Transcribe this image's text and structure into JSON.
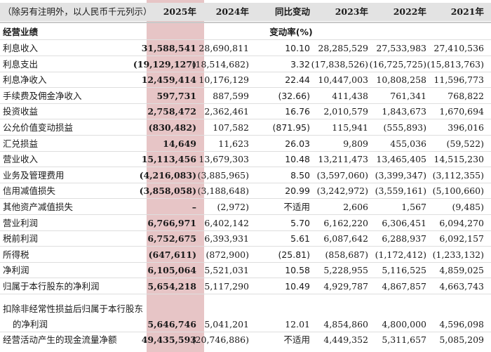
{
  "header": {
    "note": "（除另有注明外，以人民币千元列示）",
    "col_2025": "2025年",
    "col_2024": "2024年",
    "col_yoy": "同比变动",
    "col_2023": "2023年",
    "col_2022": "2022年",
    "col_2021": "2021年"
  },
  "section": {
    "title": "经营业绩",
    "change_label": "变动率(%)"
  },
  "rows": [
    {
      "label": "利息收入",
      "y2025": "31,588,541",
      "y2024": "28,690,811",
      "yoy": "10.10",
      "y2023": "28,285,529",
      "y2022": "27,533,983",
      "y2021": "27,410,536"
    },
    {
      "label": "利息支出",
      "y2025": "(19,129,127)",
      "y2024": "(18,514,682)",
      "yoy": "3.32",
      "y2023": "(17,838,526)",
      "y2022": "(16,725,725)",
      "y2021": "(15,813,763)"
    },
    {
      "label": "利息净收入",
      "y2025": "12,459,414",
      "y2024": "10,176,129",
      "yoy": "22.44",
      "y2023": "10,447,003",
      "y2022": "10,808,258",
      "y2021": "11,596,773"
    },
    {
      "label": "手续费及佣金净收入",
      "y2025": "597,731",
      "y2024": "887,599",
      "yoy": "(32.66)",
      "y2023": "411,438",
      "y2022": "761,341",
      "y2021": "768,822"
    },
    {
      "label": "投资收益",
      "y2025": "2,758,472",
      "y2024": "2,362,461",
      "yoy": "16.76",
      "y2023": "2,010,579",
      "y2022": "1,843,673",
      "y2021": "1,670,694"
    },
    {
      "label": "公允价值变动损益",
      "y2025": "(830,482)",
      "y2024": "107,582",
      "yoy": "(871.95)",
      "y2023": "115,941",
      "y2022": "(555,893)",
      "y2021": "396,016"
    },
    {
      "label": "汇兑损益",
      "y2025": "14,649",
      "y2024": "11,623",
      "yoy": "26.03",
      "y2023": "9,809",
      "y2022": "455,036",
      "y2021": "(59,522)"
    },
    {
      "label": "营业收入",
      "y2025": "15,113,456",
      "y2024": "13,679,303",
      "yoy": "10.48",
      "y2023": "13,211,473",
      "y2022": "13,465,405",
      "y2021": "14,515,230"
    },
    {
      "label": "业务及管理费用",
      "y2025": "(4,216,083)",
      "y2024": "(3,885,965)",
      "yoy": "8.50",
      "y2023": "(3,597,060)",
      "y2022": "(3,399,347)",
      "y2021": "(3,112,355)"
    },
    {
      "label": "信用减值损失",
      "y2025": "(3,858,058)",
      "y2024": "(3,188,648)",
      "yoy": "20.99",
      "y2023": "(3,242,972)",
      "y2022": "(3,559,161)",
      "y2021": "(5,100,660)"
    },
    {
      "label": "其他资产减值损失",
      "y2025": "–",
      "y2024": "(2,972)",
      "yoy": "不适用",
      "y2023": "2,606",
      "y2022": "1,567",
      "y2021": "(9,485)"
    },
    {
      "label": "营业利润",
      "y2025": "6,766,971",
      "y2024": "6,402,142",
      "yoy": "5.70",
      "y2023": "6,162,220",
      "y2022": "6,306,451",
      "y2021": "6,094,270"
    },
    {
      "label": "税前利润",
      "y2025": "6,752,675",
      "y2024": "6,393,931",
      "yoy": "5.61",
      "y2023": "6,087,642",
      "y2022": "6,288,937",
      "y2021": "6,092,157"
    },
    {
      "label": "所得税",
      "y2025": "(647,611)",
      "y2024": "(872,900)",
      "yoy": "(25.81)",
      "y2023": "(858,687)",
      "y2022": "(1,172,412)",
      "y2021": "(1,233,132)"
    },
    {
      "label": "净利润",
      "y2025": "6,105,064",
      "y2024": "5,521,031",
      "yoy": "10.58",
      "y2023": "5,228,955",
      "y2022": "5,116,525",
      "y2021": "4,859,025"
    },
    {
      "label": "归属于本行股东的净利润",
      "y2025": "5,654,218",
      "y2024": "5,117,290",
      "yoy": "10.49",
      "y2023": "4,929,787",
      "y2022": "4,867,857",
      "y2021": "4,663,743"
    }
  ],
  "multiline_row": {
    "label_line1": "扣除非经常性损益后归属于本行股东",
    "label_line2": "的净利润",
    "y2025": "5,646,746",
    "y2024": "5,041,201",
    "yoy": "12.01",
    "y2023": "4,854,860",
    "y2022": "4,800,000",
    "y2021": "4,596,098"
  },
  "last_row": {
    "label": "经营活动产生的现金流量净额",
    "y2025": "49,435,593",
    "y2024": "(20,746,886)",
    "yoy": "不适用",
    "y2023": "4,449,352",
    "y2022": "5,311,657",
    "y2021": "5,085,209"
  }
}
